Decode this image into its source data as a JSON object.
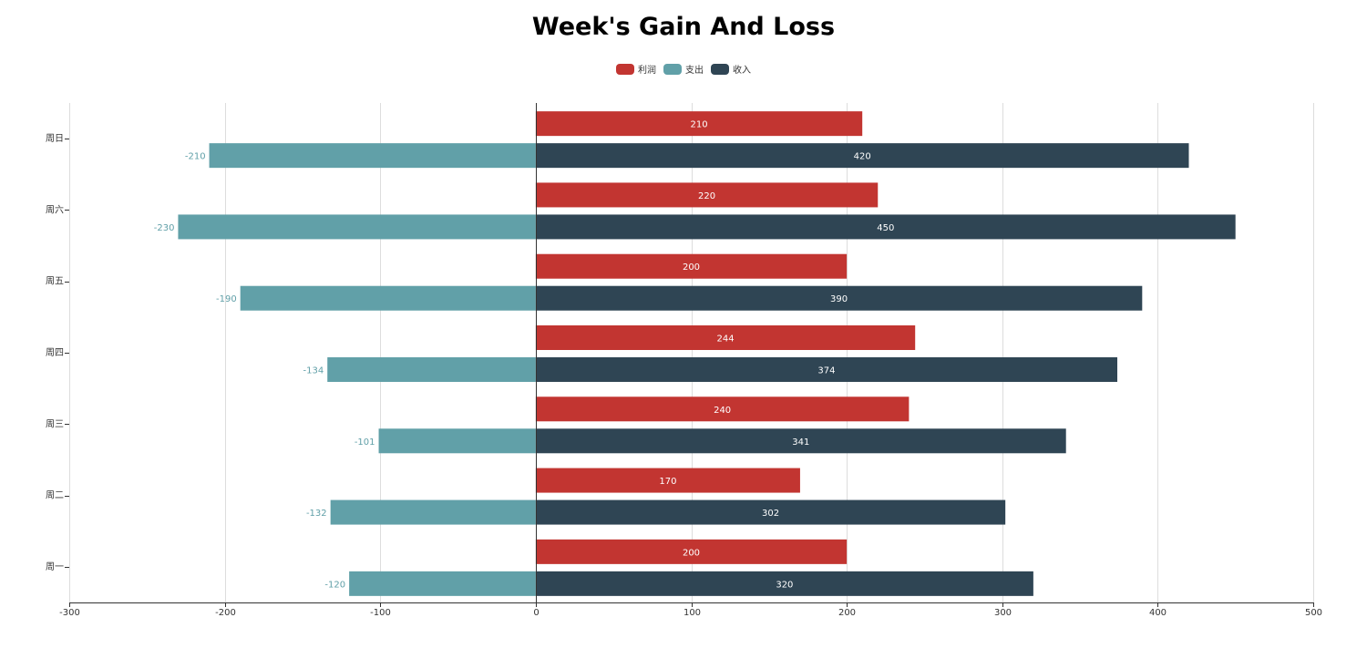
{
  "colors": {
    "profit": "#c23531",
    "expense": "#61a0a8",
    "income": "#2f4554",
    "grid": "#dddddd",
    "axis": "#333333"
  },
  "chart_data": {
    "type": "bar",
    "orientation": "horizontal",
    "title": "Week's Gain And Loss",
    "categories": [
      "周一",
      "周二",
      "周三",
      "周四",
      "周五",
      "周六",
      "周日"
    ],
    "series": [
      {
        "name": "利润",
        "values": [
          200,
          170,
          240,
          244,
          200,
          220,
          210
        ]
      },
      {
        "name": "支出",
        "values": [
          -120,
          -132,
          -101,
          -134,
          -190,
          -230,
          -210
        ]
      },
      {
        "name": "收入",
        "values": [
          320,
          302,
          341,
          374,
          390,
          450,
          420
        ]
      }
    ],
    "xlim": [
      -300,
      500
    ],
    "xticks": [
      -300,
      -200,
      -100,
      0,
      100,
      200,
      300,
      400,
      500
    ],
    "grid": true,
    "legend_position": "top-center",
    "data_labels": true
  }
}
